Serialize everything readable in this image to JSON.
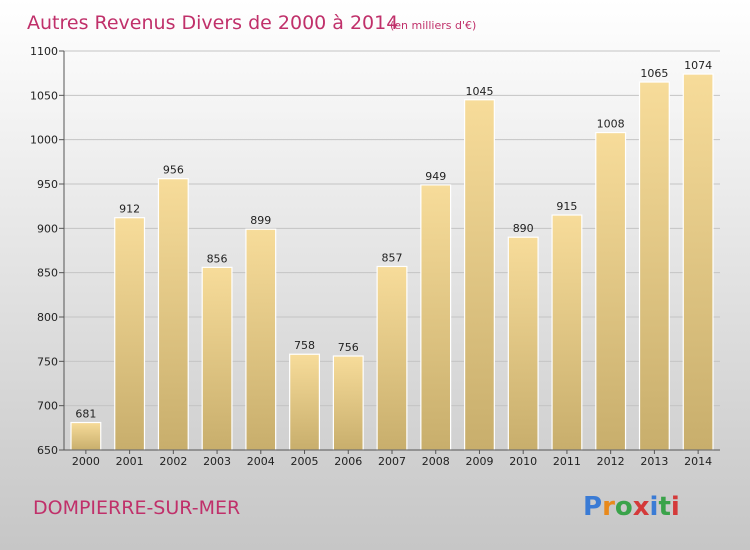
{
  "title": "Autres Revenus Divers de 2000 à 2014",
  "subtitle": "(en milliers d'€)",
  "place": "DOMPIERRE-SUR-MER",
  "logo": {
    "text": "Proxiti",
    "letters": [
      "P",
      "r",
      "o",
      "x",
      "i",
      "t",
      "i"
    ],
    "colors": [
      "#3a7bd5",
      "#e8891b",
      "#3aa34a",
      "#d43a3a",
      "#3a7bd5",
      "#3aa34a",
      "#d43a3a"
    ]
  },
  "colors": {
    "title": "#c0306a",
    "bar_top": "#f7dc9a",
    "bar_bottom": "#c8ae6c",
    "background_top": "#ffffff",
    "background_bottom": "#c6c6c6"
  },
  "chart_data": {
    "type": "bar",
    "title": "Autres Revenus Divers de 2000 à 2014",
    "subtitle": "(en milliers d'€)",
    "categories": [
      "2000",
      "2001",
      "2002",
      "2003",
      "2004",
      "2005",
      "2006",
      "2007",
      "2008",
      "2009",
      "2010",
      "2011",
      "2012",
      "2013",
      "2014"
    ],
    "values": [
      681,
      912,
      956,
      856,
      899,
      758,
      756,
      857,
      949,
      1045,
      890,
      915,
      1008,
      1065,
      1074
    ],
    "ylim": [
      650,
      1100
    ],
    "yticks": [
      650,
      700,
      750,
      800,
      850,
      900,
      950,
      1000,
      1050,
      1100
    ],
    "grid": true,
    "xlabel": "",
    "ylabel": ""
  }
}
